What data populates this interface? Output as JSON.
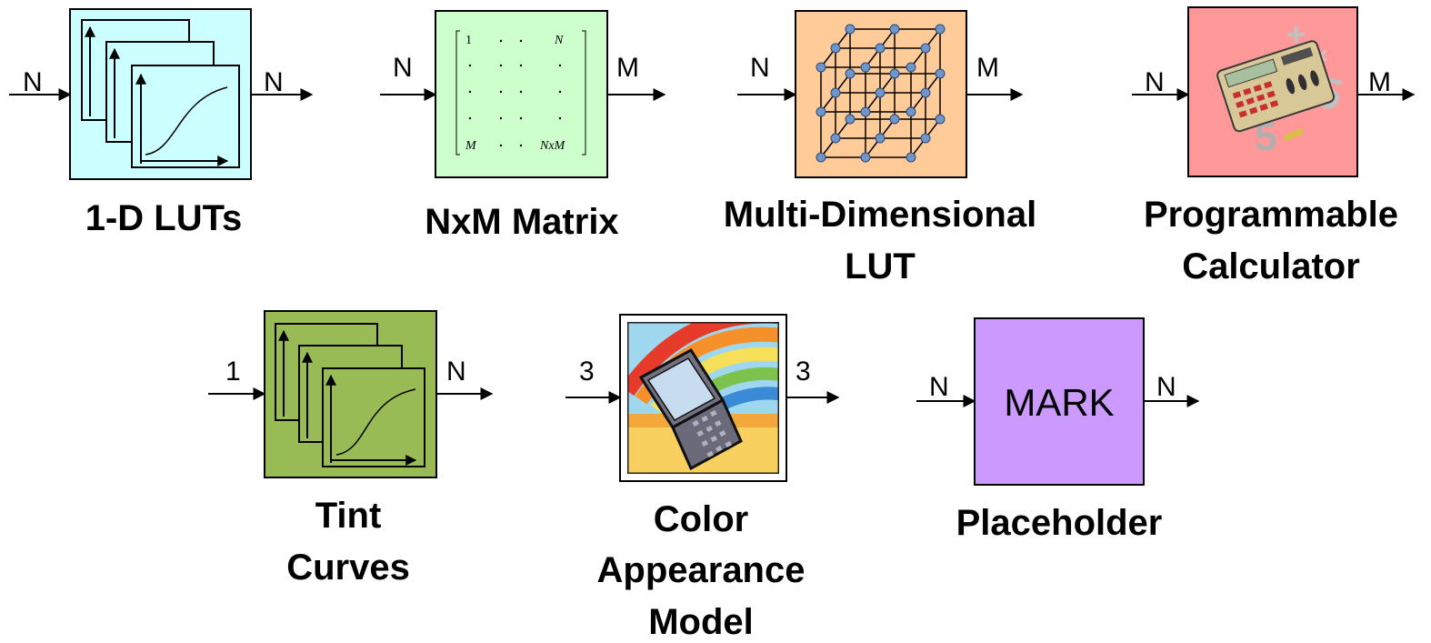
{
  "blocks": {
    "luts_1d": {
      "label": "1-D LUTs",
      "input": "N",
      "output": "N",
      "color": "#ccffff"
    },
    "matrix": {
      "label": "NxM Matrix",
      "input": "N",
      "output": "M",
      "color": "#ccffcc",
      "cells": {
        "top_left": "1",
        "top_right": "N",
        "bottom_left": "M",
        "bottom_right": "NxM",
        "dot": "·"
      }
    },
    "md_lut": {
      "label_line1": "Multi-Dimensional",
      "label_line2": "LUT",
      "input": "N",
      "output": "M",
      "color": "#ffcc99"
    },
    "calculator": {
      "label_line1": "Programmable",
      "label_line2": "Calculator",
      "input": "N",
      "output": "M",
      "color": "#ff9999"
    },
    "tint": {
      "label_line1": "Tint",
      "label_line2": "Curves",
      "input": "1",
      "output": "N",
      "color": "#99bb55"
    },
    "cam": {
      "label_line1": "Color",
      "label_line2": "Appearance",
      "label_line3": "Model",
      "input": "3",
      "output": "3"
    },
    "mark": {
      "text": "MARK",
      "label": "Placeholder",
      "input": "N",
      "output": "N",
      "color": "#cc99ff"
    }
  },
  "icons": {
    "curves": "curve-stack-icon",
    "cube": "lattice-cube-icon",
    "calculator": "calculator-clipart-icon",
    "laptop": "rainbow-laptop-clipart-icon"
  }
}
